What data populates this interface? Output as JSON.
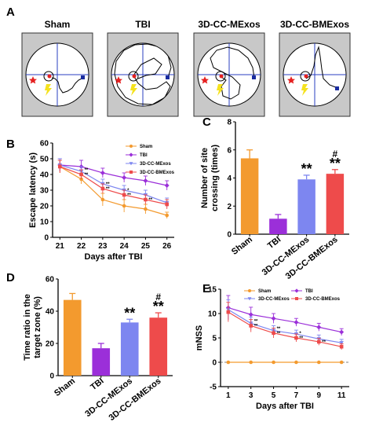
{
  "panel_labels": [
    "A",
    "B",
    "C",
    "D",
    "E"
  ],
  "panel_a": {
    "groups": [
      "Sham",
      "TBI",
      "3D-CC-MExos",
      "3D-CC-BMExos"
    ]
  },
  "colors": {
    "sham": "#f39a2e",
    "tbi": "#9b2fd9",
    "mexos": "#7d86f0",
    "bmexos": "#ee4b4b"
  },
  "chart_data": [
    {
      "id": "B",
      "type": "line",
      "xlabel": "Days after TBI",
      "ylabel": "Escape latency (s)",
      "x": [
        21,
        22,
        23,
        24,
        25,
        26
      ],
      "xticks": [
        "21",
        "22",
        "23",
        "24",
        "25",
        "26"
      ],
      "ylim": [
        0,
        60
      ],
      "yticks": [
        "0",
        "10",
        "20",
        "30",
        "40",
        "50",
        "60"
      ],
      "legend_position": "top-right",
      "series": [
        {
          "name": "Sham",
          "values": [
            45,
            37,
            24,
            20,
            18,
            14
          ],
          "err": [
            4,
            3,
            4,
            4,
            3,
            2
          ]
        },
        {
          "name": "TBI",
          "values": [
            46,
            45,
            41,
            38,
            36,
            33
          ],
          "err": [
            4,
            4,
            3,
            3,
            3,
            3
          ]
        },
        {
          "name": "3D-CC-MExos",
          "values": [
            46,
            42,
            34,
            30,
            27,
            22
          ],
          "err": [
            4,
            3,
            3,
            3,
            3,
            3
          ]
        },
        {
          "name": "3D-CC-BMExos",
          "values": [
            45,
            40,
            31,
            27,
            24,
            21
          ],
          "err": [
            4,
            3,
            3,
            3,
            3,
            3
          ]
        }
      ],
      "annotations": [
        "**",
        "**",
        "**",
        "**",
        "**",
        "*",
        "**"
      ]
    },
    {
      "id": "C",
      "type": "bar",
      "ylabel": "Number of site crossing (times)",
      "categories": [
        "Sham",
        "TBI",
        "3D-CC-MExos",
        "3D-CC-BMExos"
      ],
      "values": [
        5.4,
        1.1,
        3.9,
        4.3
      ],
      "err": [
        0.6,
        0.3,
        0.3,
        0.3
      ],
      "ylim": [
        0,
        8
      ],
      "yticks": [
        "0",
        "2",
        "4",
        "6",
        "8"
      ],
      "annotations": [
        "",
        "",
        "**",
        "**"
      ],
      "annotations_top": [
        "",
        "",
        "",
        "#"
      ]
    },
    {
      "id": "D",
      "type": "bar",
      "ylabel": "Time ratio in the target zone (%)",
      "categories": [
        "Sham",
        "TBI",
        "3D-CC-MExos",
        "3D-CC-BMExos"
      ],
      "values": [
        47,
        17,
        33,
        36
      ],
      "err": [
        4,
        3,
        2,
        3
      ],
      "ylim": [
        0,
        60
      ],
      "yticks": [
        "0",
        "20",
        "40",
        "60"
      ],
      "annotations": [
        "",
        "",
        "**",
        "**"
      ],
      "annotations_top": [
        "",
        "",
        "",
        "#"
      ]
    },
    {
      "id": "E",
      "type": "line",
      "xlabel": "Days after TBI",
      "ylabel": "mNSS",
      "x": [
        1,
        3,
        5,
        7,
        9,
        11
      ],
      "xticks": [
        "1",
        "3",
        "5",
        "7",
        "9",
        "11"
      ],
      "ylim": [
        -5,
        15
      ],
      "yticks": [
        "-5",
        "0",
        "5",
        "10",
        "15"
      ],
      "legend_position": "top",
      "series": [
        {
          "name": "Sham",
          "values": [
            0,
            0,
            0,
            0,
            0,
            0
          ],
          "err": [
            0,
            0,
            0,
            0,
            0,
            0
          ]
        },
        {
          "name": "TBI",
          "values": [
            11.2,
            9.8,
            9.0,
            8.2,
            7.2,
            6.2
          ],
          "err": [
            2.5,
            1.5,
            1.0,
            0.8,
            0.8,
            0.7
          ]
        },
        {
          "name": "3D-CC-MExos",
          "values": [
            10.8,
            8.0,
            6.5,
            5.8,
            4.8,
            4.0
          ],
          "err": [
            2.0,
            1.3,
            1.0,
            0.8,
            0.8,
            0.7
          ]
        },
        {
          "name": "3D-CC-BMExos",
          "values": [
            10.3,
            7.5,
            6.0,
            5.0,
            4.2,
            3.2
          ],
          "err": [
            2.0,
            1.3,
            1.0,
            0.8,
            0.7,
            0.6
          ]
        }
      ],
      "annotations": [
        "**",
        "**",
        "**",
        "**",
        "**",
        "*",
        "**"
      ]
    }
  ]
}
